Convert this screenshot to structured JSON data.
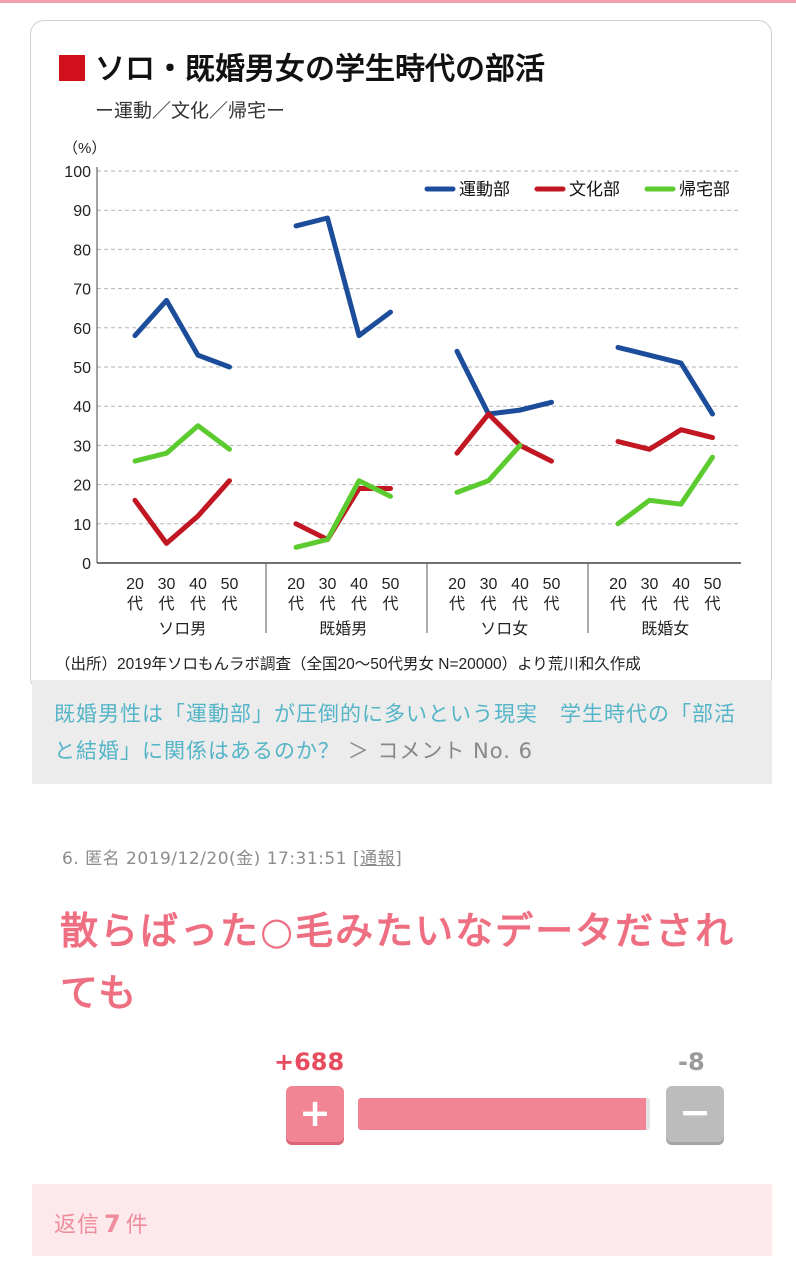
{
  "chart": {
    "title": "ソロ・既婚男女の学生時代の部活",
    "subtitle": "ー運動／文化／帰宅ー",
    "unit": "（%）",
    "source": "（出所）2019年ソロもんラボ調査（全国20〜50代男女 N=20000）より荒川和久作成"
  },
  "chart_data": {
    "type": "line",
    "groups": [
      "ソロ男",
      "既婚男",
      "ソロ女",
      "既婚女"
    ],
    "age_labels": [
      "20代",
      "30代",
      "40代",
      "50代"
    ],
    "ylim": [
      0,
      100
    ],
    "yticks": [
      0,
      10,
      20,
      30,
      40,
      50,
      60,
      70,
      80,
      90,
      100
    ],
    "grid": true,
    "legend": "top-right",
    "series": [
      {
        "name": "運動部",
        "color": "#1c4d9a",
        "values": [
          [
            58,
            67,
            53,
            50
          ],
          [
            86,
            88,
            58,
            64
          ],
          [
            54,
            38,
            39,
            41
          ],
          [
            55,
            53,
            51,
            38
          ]
        ]
      },
      {
        "name": "文化部",
        "color": "#c01722",
        "values": [
          [
            16,
            5,
            12,
            21
          ],
          [
            10,
            6,
            19,
            19
          ],
          [
            28,
            38,
            30,
            26
          ],
          [
            31,
            29,
            34,
            32
          ]
        ]
      },
      {
        "name": "帰宅部",
        "color": "#5ccb2f",
        "values": [
          [
            26,
            28,
            35,
            29
          ],
          [
            4,
            6,
            21,
            17
          ],
          [
            18,
            21,
            30,
            null
          ],
          [
            10,
            16,
            15,
            27
          ]
        ]
      }
    ]
  },
  "caption": {
    "link_text": "既婚男性は「運動部」が圧倒的に多いという現実　学生時代の「部活と結婚」に関係はあるのか？",
    "separator": "＞",
    "comment_no": "コメント No. 6"
  },
  "comment": {
    "number": "6.",
    "author": "匿名",
    "datetime": "2019/12/20(金) 17:31:51",
    "report_label": "通報",
    "text": "散らばった○毛みたいなデータだされても",
    "plus_count": "+688",
    "minus_count": "-8",
    "plus_symbol": "+",
    "minus_symbol": "−",
    "vote_ratio": 0.988
  },
  "reply": {
    "prefix": "返信",
    "count": "7",
    "suffix": "件"
  }
}
